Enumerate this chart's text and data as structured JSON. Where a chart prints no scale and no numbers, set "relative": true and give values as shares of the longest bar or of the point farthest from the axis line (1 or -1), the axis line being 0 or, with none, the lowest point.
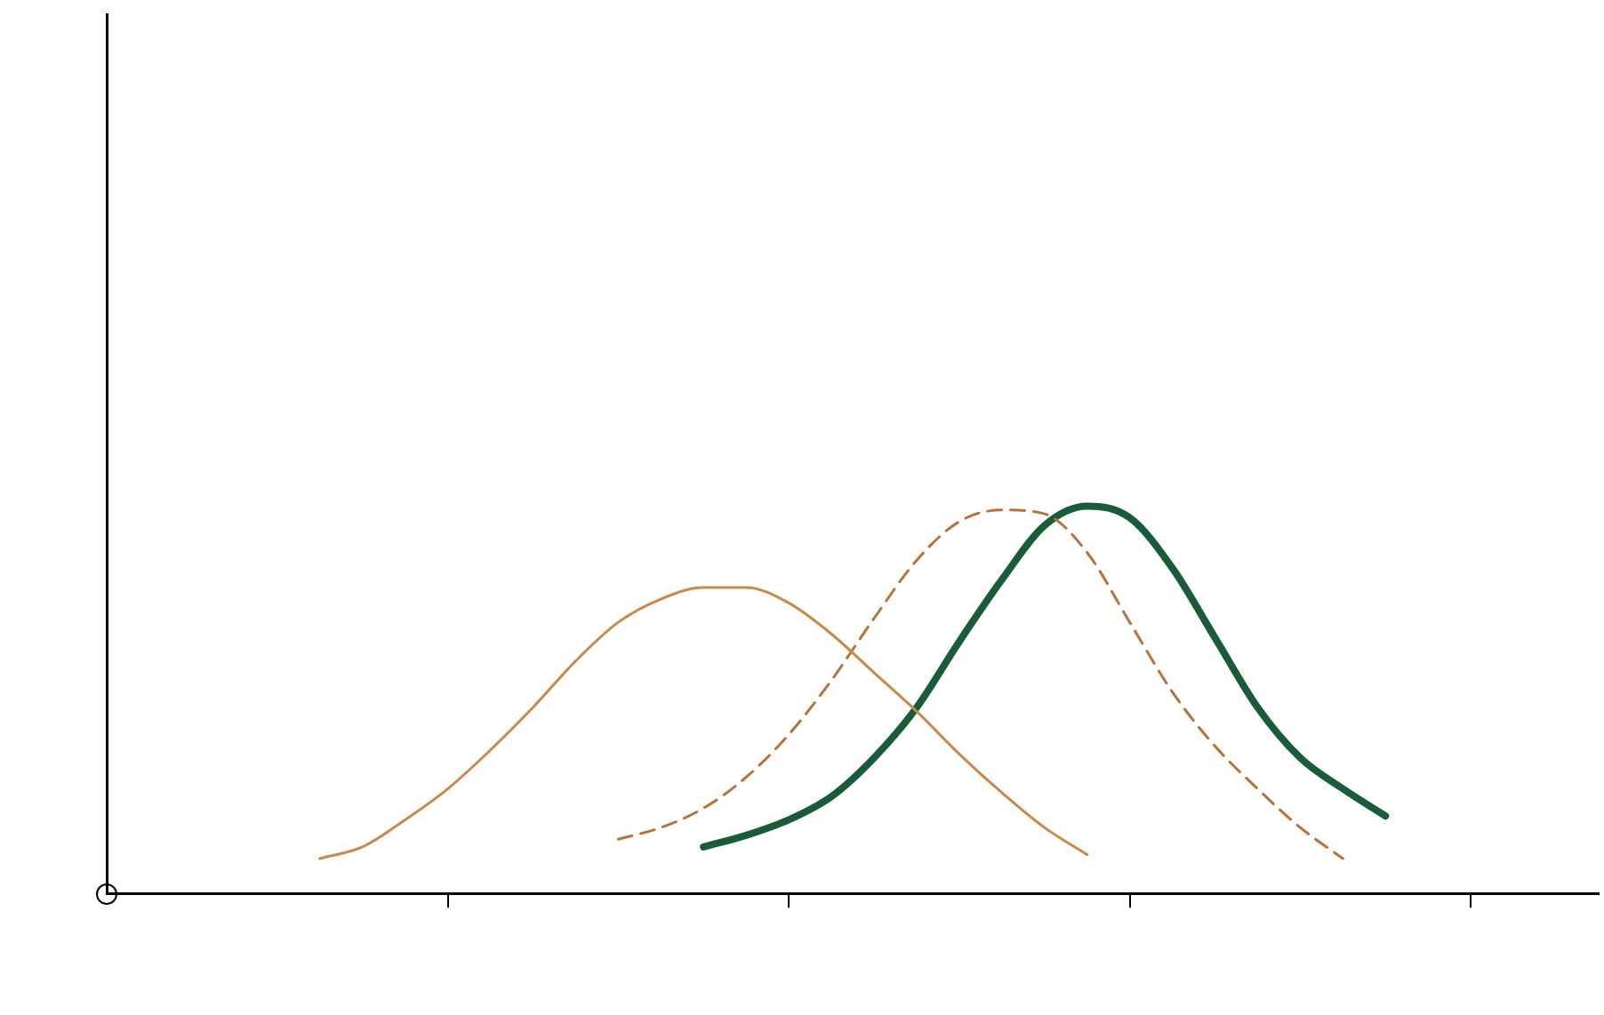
{
  "chart_data": {
    "type": "line",
    "relative": true,
    "categories": [
      null,
      null,
      null,
      null,
      null,
      null,
      null,
      null,
      null,
      null,
      null,
      null,
      null,
      null,
      null,
      null,
      null,
      null,
      null,
      null,
      null,
      null,
      null,
      null,
      null,
      null,
      null,
      null,
      null,
      null,
      null,
      null,
      null,
      null,
      null,
      null
    ],
    "series": [
      {
        "color": "#c8894a",
        "line_style": "solid",
        "values": [
          null,
          null,
          null,
          null,
          null,
          0.09,
          0.12,
          0.19,
          0.27,
          0.37,
          0.48,
          0.6,
          0.7,
          0.76,
          0.79,
          0.79,
          0.75,
          0.67,
          0.57,
          0.47,
          0.36,
          0.26,
          0.17,
          0.1,
          null,
          null,
          null,
          null,
          null,
          null,
          null,
          null,
          null,
          null,
          null,
          null
        ]
      },
      {
        "color": "#b8733a",
        "line_style": "dashed",
        "values": [
          null,
          null,
          null,
          null,
          null,
          null,
          null,
          null,
          null,
          null,
          null,
          null,
          0.14,
          0.17,
          0.22,
          0.3,
          0.41,
          0.55,
          0.71,
          0.86,
          0.96,
          0.99,
          0.98,
          0.88,
          0.7,
          0.52,
          0.38,
          0.27,
          0.17,
          0.09,
          null,
          null,
          null,
          null,
          null,
          null
        ]
      },
      {
        "color": "#1a5c3a",
        "line_style": "solid",
        "values": [
          null,
          null,
          null,
          null,
          null,
          null,
          null,
          null,
          null,
          null,
          null,
          null,
          null,
          null,
          0.12,
          0.15,
          0.19,
          0.25,
          0.35,
          0.48,
          0.65,
          0.81,
          0.95,
          1,
          0.97,
          0.84,
          0.66,
          0.48,
          0.35,
          0.27,
          0.2,
          null,
          null,
          null,
          null,
          null
        ]
      }
    ],
    "marker": "none",
    "grid": false,
    "legend": false
  }
}
